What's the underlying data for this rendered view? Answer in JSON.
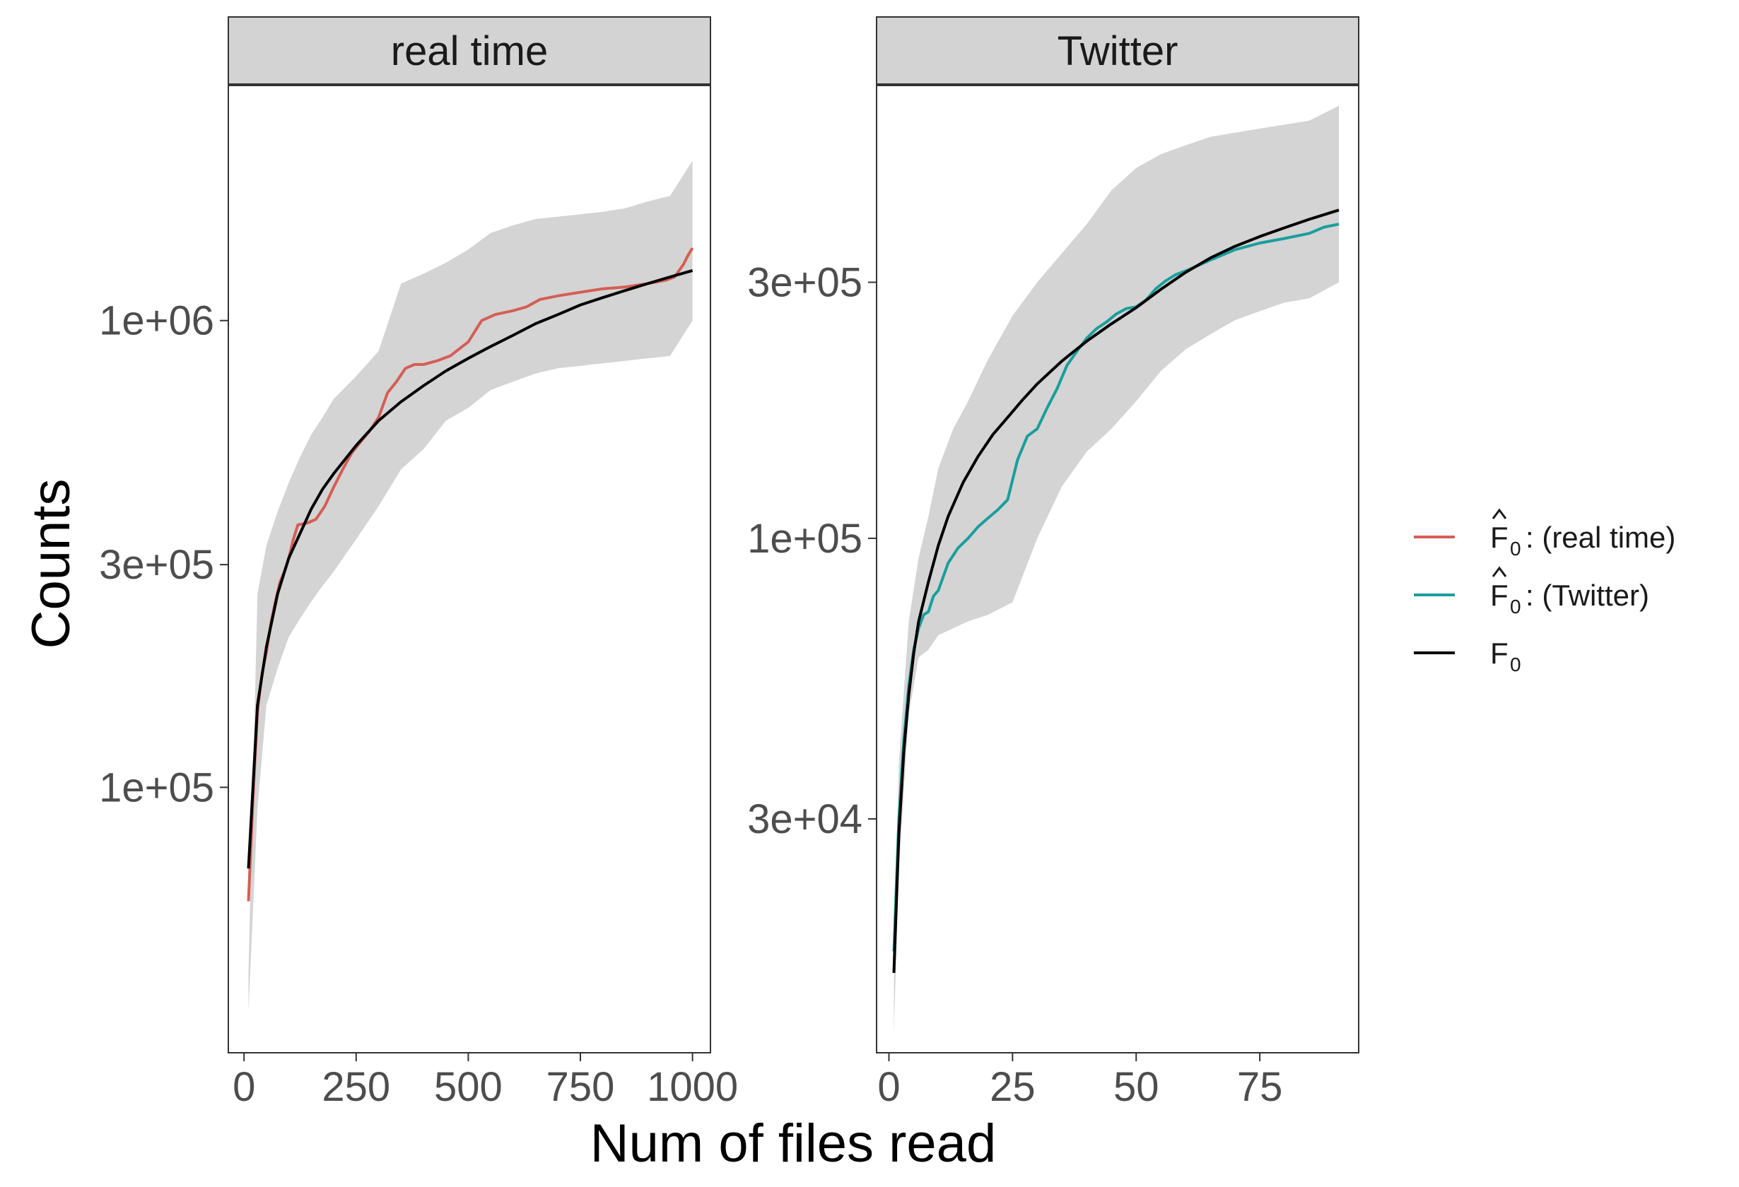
{
  "chart_data": {
    "type": "line",
    "xlabel": "Num of files read",
    "ylabel": "Counts",
    "y_scale": "log10",
    "grid": false,
    "legend_position": "right",
    "legend": [
      {
        "id": "rt",
        "symbol": "F",
        "hat": true,
        "label": ": (real time)",
        "color": "#D55E55"
      },
      {
        "id": "tw",
        "symbol": "F",
        "hat": true,
        "label": ": (Twitter)",
        "color": "#1A9E9C"
      },
      {
        "id": "f0",
        "symbol": "F",
        "hat": false,
        "label": "",
        "color": "#000000"
      }
    ],
    "panels": [
      {
        "title": "real time",
        "xlim": [
          -35,
          1040
        ],
        "ylim": [
          27000,
          3200000
        ],
        "x_ticks": [
          0,
          250,
          500,
          750,
          1000
        ],
        "x_tick_labels": [
          "0",
          "250",
          "500",
          "750",
          "1000"
        ],
        "y_ticks": [
          100000,
          300000,
          1000000
        ],
        "y_tick_labels": [
          "1e+05",
          "3e+05",
          "1e+06"
        ],
        "band_color": "#D4D4D4",
        "band": {
          "x": [
            10,
            30,
            50,
            75,
            100,
            125,
            150,
            175,
            200,
            250,
            300,
            350,
            400,
            450,
            500,
            550,
            600,
            650,
            700,
            750,
            800,
            850,
            900,
            950,
            1000
          ],
          "upper": [
            40000,
            260000,
            330000,
            390000,
            450000,
            510000,
            570000,
            620000,
            680000,
            760000,
            860000,
            1200000,
            1260000,
            1330000,
            1420000,
            1540000,
            1600000,
            1650000,
            1670000,
            1690000,
            1710000,
            1740000,
            1800000,
            1850000,
            2200000
          ],
          "lower": [
            33000,
            90000,
            150000,
            180000,
            210000,
            230000,
            250000,
            270000,
            290000,
            340000,
            400000,
            480000,
            530000,
            610000,
            650000,
            710000,
            740000,
            770000,
            790000,
            800000,
            810000,
            820000,
            830000,
            840000,
            1000000
          ]
        },
        "series": [
          {
            "id": "rt",
            "color": "#D55E55",
            "x": [
              10,
              20,
              30,
              40,
              50,
              60,
              70,
              80,
              90,
              100,
              110,
              120,
              140,
              160,
              180,
              200,
              220,
              240,
              260,
              280,
              300,
              320,
              340,
              360,
              380,
              400,
              430,
              460,
              500,
              530,
              560,
              600,
              630,
              660,
              700,
              750,
              800,
              850,
              900,
              940,
              960,
              980,
              990,
              1000
            ],
            "y": [
              57000,
              95000,
              145000,
              175000,
              195000,
              225000,
              250000,
              275000,
              290000,
              310000,
              340000,
              365000,
              368000,
              375000,
              400000,
              440000,
              480000,
              520000,
              550000,
              580000,
              620000,
              700000,
              740000,
              790000,
              805000,
              805000,
              820000,
              840000,
              900000,
              1000000,
              1030000,
              1050000,
              1070000,
              1110000,
              1130000,
              1150000,
              1170000,
              1180000,
              1200000,
              1220000,
              1240000,
              1320000,
              1380000,
              1430000
            ]
          },
          {
            "id": "f0",
            "color": "#000000",
            "x": [
              10,
              30,
              50,
              75,
              100,
              125,
              150,
              175,
              200,
              250,
              300,
              350,
              400,
              450,
              500,
              550,
              600,
              650,
              700,
              750,
              800,
              850,
              900,
              950,
              1000
            ],
            "y": [
              67000,
              150000,
              200000,
              260000,
              310000,
              350000,
              395000,
              435000,
              470000,
              540000,
              610000,
              670000,
              725000,
              780000,
              830000,
              880000,
              930000,
              985000,
              1030000,
              1080000,
              1120000,
              1160000,
              1200000,
              1240000,
              1280000
            ]
          }
        ]
      },
      {
        "title": "Twitter",
        "xlim": [
          -2.5,
          95
        ],
        "ylim": [
          11000,
          700000
        ],
        "x_ticks": [
          0,
          25,
          50,
          75
        ],
        "x_tick_labels": [
          "0",
          "25",
          "50",
          "75"
        ],
        "y_ticks": [
          30000,
          100000,
          300000
        ],
        "y_tick_labels": [
          "3e+04",
          "1e+05",
          "3e+05"
        ],
        "band_color": "#D4D4D4",
        "band": {
          "x": [
            1,
            2,
            4,
            6,
            8,
            10,
            13,
            16,
            20,
            25,
            30,
            35,
            40,
            45,
            50,
            55,
            60,
            65,
            70,
            75,
            80,
            85,
            91
          ],
          "upper": [
            15000,
            38000,
            70000,
            92000,
            110000,
            135000,
            160000,
            180000,
            215000,
            260000,
            300000,
            340000,
            385000,
            445000,
            490000,
            520000,
            540000,
            560000,
            570000,
            580000,
            590000,
            600000,
            640000
          ],
          "lower": [
            12000,
            24000,
            47000,
            60000,
            62000,
            66000,
            68000,
            70000,
            72000,
            76000,
            100000,
            125000,
            145000,
            160000,
            180000,
            205000,
            225000,
            240000,
            255000,
            265000,
            275000,
            280000,
            300000
          ]
        },
        "series": [
          {
            "id": "tw",
            "color": "#1A9E9C",
            "x": [
              1,
              2,
              3,
              4,
              5,
              6,
              7,
              8,
              9,
              10,
              12,
              14,
              16,
              18,
              20,
              22,
              24,
              26,
              28,
              30,
              32,
              34,
              36,
              38,
              40,
              42,
              44,
              46,
              48,
              50,
              52,
              54,
              56,
              58,
              60,
              65,
              70,
              75,
              80,
              85,
              88,
              91
            ],
            "y": [
              17000,
              30000,
              42000,
              53000,
              62000,
              68000,
              72000,
              73000,
              78000,
              80000,
              90000,
              96000,
              100000,
              105000,
              109000,
              113000,
              118000,
              140000,
              155000,
              160000,
              175000,
              190000,
              210000,
              223000,
              236000,
              246000,
              253000,
              262000,
              268000,
              270000,
              278000,
              292000,
              302000,
              310000,
              315000,
              330000,
              345000,
              355000,
              362000,
              370000,
              380000,
              385000
            ]
          },
          {
            "id": "f0",
            "color": "#000000",
            "x": [
              1,
              2,
              3,
              4,
              5,
              6,
              8,
              10,
              12,
              15,
              18,
              21,
              24,
              27,
              30,
              35,
              40,
              45,
              50,
              55,
              60,
              65,
              70,
              75,
              80,
              85,
              91
            ],
            "y": [
              15500,
              28000,
              40000,
              51000,
              61000,
              70000,
              83000,
              97000,
              110000,
              127000,
              142000,
              156000,
              168000,
              181000,
              194000,
              214000,
              233000,
              251000,
              269000,
              291000,
              313000,
              333000,
              350000,
              365000,
              379000,
              393000,
              409000
            ]
          }
        ]
      }
    ]
  }
}
